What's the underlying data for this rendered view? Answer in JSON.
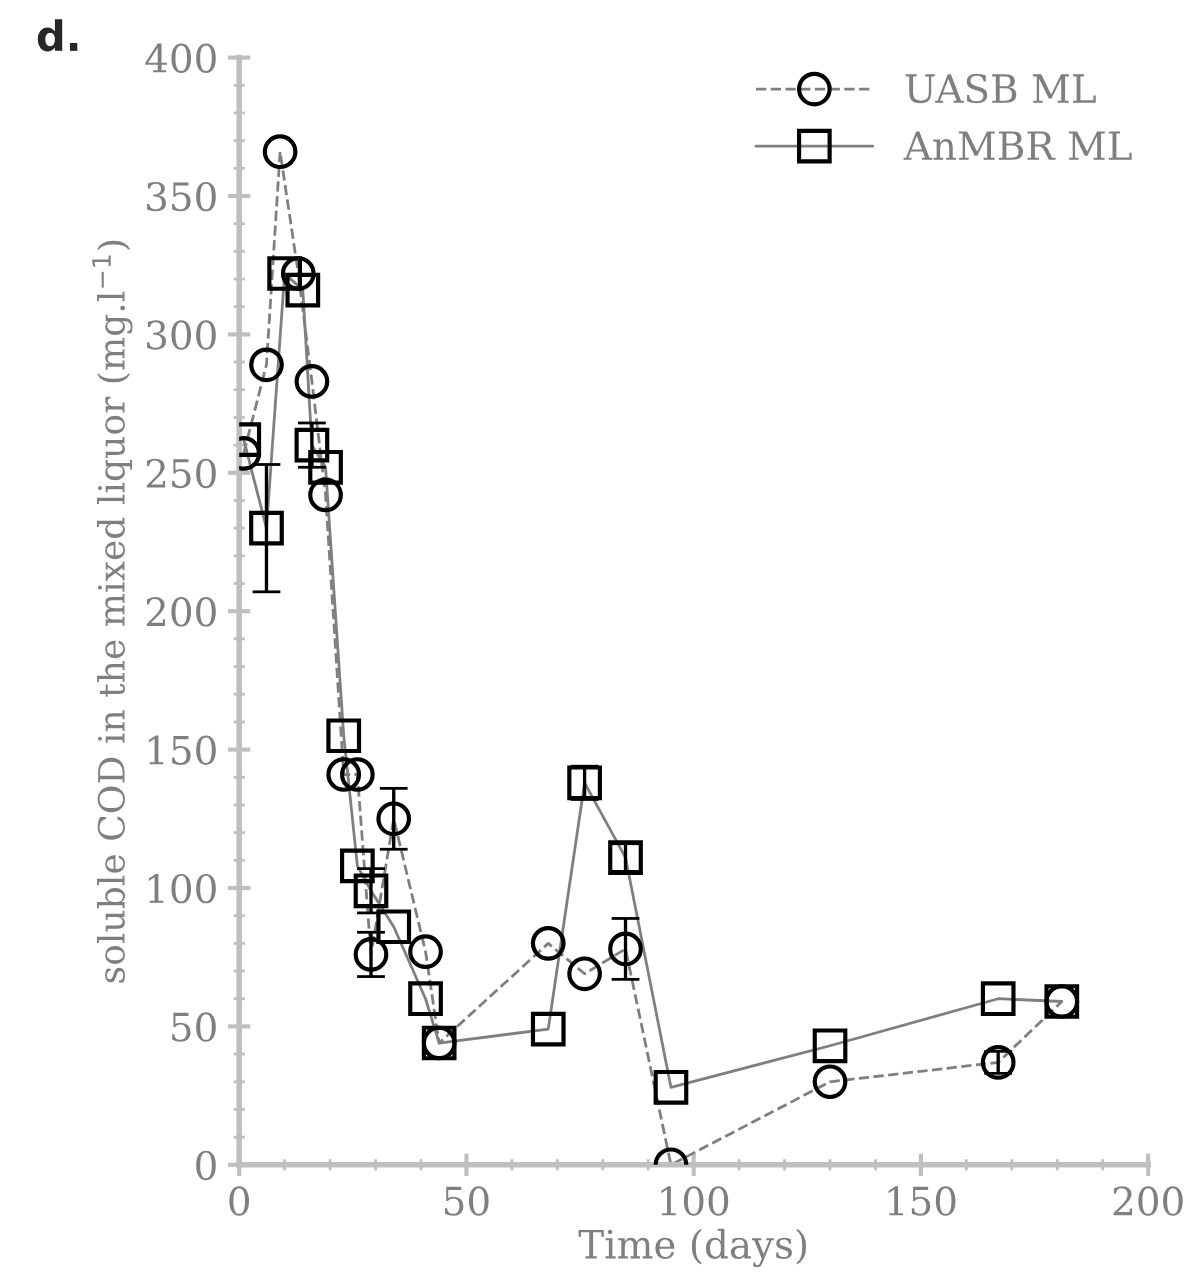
{
  "chart_data": {
    "type": "line",
    "title": "d.",
    "xlabel": "Time (days)",
    "ylabel": "soluble COD in the mixed liquor (mg.l$^{−1}$)",
    "xlim": [
      0,
      200
    ],
    "xticks": [
      0,
      50,
      100,
      150,
      200
    ],
    "ylim": [
      0,
      400
    ],
    "yticks": [
      0,
      50,
      100,
      150,
      200,
      250,
      300,
      350,
      400
    ],
    "grid": false,
    "legend": "top right",
    "series": [
      {
        "name": "UASB ML",
        "color": "#000000",
        "marker": "circle",
        "line_style": "dashed",
        "x": [
          1,
          6,
          9,
          13,
          16,
          19,
          23,
          26,
          29,
          34,
          41,
          44,
          68,
          76,
          85,
          95,
          130,
          167,
          181
        ],
        "values": [
          257,
          289,
          366,
          322,
          283,
          242,
          141,
          141,
          76,
          125,
          77,
          44,
          80,
          69,
          78,
          0,
          30,
          37,
          59
        ],
        "errors": [
          null,
          null,
          null,
          null,
          null,
          null,
          null,
          null,
          8,
          11,
          null,
          null,
          null,
          null,
          11,
          null,
          null,
          4,
          null
        ]
      },
      {
        "name": "AnMBR ML",
        "color": "#000000",
        "marker": "square",
        "line_style": "solid",
        "x": [
          1,
          6,
          10,
          14,
          16,
          19,
          23,
          26,
          29,
          34,
          41,
          44,
          68,
          76,
          85,
          95,
          130,
          167,
          181
        ],
        "values": [
          262,
          230,
          322,
          316,
          260,
          252,
          155,
          108,
          99,
          86,
          60,
          44,
          49,
          138,
          111,
          28,
          43,
          60,
          59
        ],
        "errors": [
          null,
          23,
          null,
          null,
          8,
          null,
          null,
          null,
          8,
          null,
          null,
          null,
          null,
          6,
          5,
          null,
          null,
          null,
          null
        ]
      }
    ]
  }
}
